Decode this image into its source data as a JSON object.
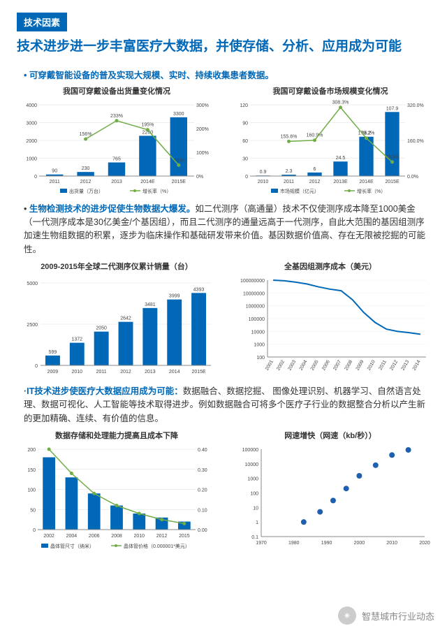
{
  "header": {
    "tag": "技术因素",
    "title": "技术进步进一步丰富医疗大数据，并使存储、分析、应用成为可能"
  },
  "section1": {
    "bullet": "可穿戴智能设备的普及实现大规模、实时、持续收集患者数据。",
    "chart_a": {
      "title": "我国可穿戴设备出货量变化情况",
      "type": "bar+line",
      "categories": [
        "2011",
        "2012",
        "2013",
        "2014E",
        "2015E"
      ],
      "bars": [
        90,
        230,
        765,
        2260,
        3300
      ],
      "bar_color": "#0068b7",
      "line": [
        null,
        156,
        233,
        195,
        46
      ],
      "line_labels": [
        "",
        "156%",
        "233%",
        "195%",
        "46%"
      ],
      "value_labels": [
        "90",
        "230",
        "765",
        "2260",
        "3300"
      ],
      "line_color": "#70ad47",
      "y_left_ticks": [
        0,
        1000,
        2000,
        3000,
        4000
      ],
      "y_right_ticks": [
        "0%",
        "100%",
        "200%",
        "300%"
      ],
      "legend": [
        "出货量（万台）",
        "增长率（%）"
      ],
      "axis_color": "#888",
      "text_color": "#444",
      "tick_fontsize": 7
    },
    "chart_b": {
      "title": "我国可穿戴设备市场规模变化情况",
      "type": "bar+line",
      "categories": [
        "2010",
        "2011",
        "2012",
        "2013E",
        "2014E",
        "2015E"
      ],
      "bars": [
        0.9,
        2.3,
        6,
        24.5,
        66.2,
        107.9
      ],
      "bar_color": "#0068b7",
      "value_labels": [
        "0.9",
        "2.3",
        "6",
        "24.5",
        "66.2",
        "107.9"
      ],
      "line": [
        null,
        155.6,
        160.9,
        308.3,
        170.2,
        63.0
      ],
      "line_labels": [
        "",
        "155.6%",
        "160.9%",
        "308.3%",
        "170.2%",
        "63.0%"
      ],
      "line_color": "#70ad47",
      "y_left_ticks": [
        0,
        30,
        60,
        90,
        120
      ],
      "y_right_ticks": [
        "0.0%",
        "160.0%",
        "320.0%"
      ],
      "legend": [
        "市场规模（亿元）",
        "增长率（%）"
      ],
      "axis_color": "#888",
      "text_color": "#444",
      "tick_fontsize": 7
    }
  },
  "section2": {
    "lead": "生物检测技术的进步促使生物数据大爆发。",
    "body": "如二代测序（高通量）技术不仅使测序成本降至1000美金（一代测序成本是30亿美金/个基因组），而且二代测序的通量远高于一代测序，自此大范围的基因组测序加速生物组数据的积累，逐步为临床操作和基础研发带来价值。基因数据价值高、存在无限被挖掘的可能性。",
    "chart_a": {
      "title": "2009-2015年全球二代测序仪累计销量（台）",
      "type": "bar",
      "categories": [
        "2009",
        "2010",
        "2011",
        "2012",
        "2013",
        "2014",
        "2015E"
      ],
      "values": [
        599,
        1372,
        2050,
        2642,
        3481,
        3999,
        4393
      ],
      "bar_color": "#0068b7",
      "y_ticks": [
        0,
        2500,
        5000
      ],
      "axis_color": "#888",
      "text_color": "#444",
      "tick_fontsize": 7
    },
    "chart_b": {
      "title": "全基因组测序成本（美元）",
      "type": "line-log",
      "categories": [
        "2001",
        "2002",
        "2003",
        "2004",
        "2005",
        "2006",
        "2007",
        "2008",
        "2009",
        "2010",
        "2011",
        "2012",
        "2013",
        "2014"
      ],
      "values": [
        100000000,
        90000000,
        70000000,
        50000000,
        30000000,
        20000000,
        15000000,
        3000000,
        300000,
        50000,
        15000,
        10000,
        8000,
        6000
      ],
      "line_color": "#0068b7",
      "y_ticks": [
        "100",
        "1000",
        "10000",
        "100000",
        "1000000",
        "10000000",
        "100000000"
      ],
      "y_ticks_num": [
        100,
        1000,
        10000,
        100000,
        1000000,
        10000000,
        100000000
      ],
      "axis_color": "#888",
      "text_color": "#444",
      "tick_fontsize": 7
    }
  },
  "section3": {
    "lead": "IT技术进步使医疗大数据应用成为可能：",
    "body": "数据融合、数据挖掘、 图像处理识别、机器学习、自然语言处理、数据可视化、人工智能等技术取得进步。例如数据融合可将多个医疗子行业的数据整合分析以产生新的更加精确、连续、有价值的信息。",
    "chart_a": {
      "title": "数据存储和处理能力提高且成本下降",
      "type": "bar+line-decline",
      "categories": [
        "2002",
        "2004",
        "2006",
        "2008",
        "2010",
        "2012",
        "2015"
      ],
      "bars": [
        180,
        130,
        90,
        60,
        40,
        30,
        20
      ],
      "line": [
        0.4,
        0.28,
        0.18,
        0.12,
        0.08,
        0.05,
        0.03
      ],
      "bar_color": "#0068b7",
      "line_color": "#70ad47",
      "y_left_ticks": [
        0,
        50,
        100,
        150,
        200
      ],
      "y_right_ticks": [
        "0.00",
        "0.10",
        "0.20",
        "0.30",
        "0.40"
      ],
      "legend": [
        "晶体管尺寸（纳米）",
        "晶体管价格（0.000001*美元）"
      ],
      "axis_color": "#888",
      "text_color": "#444",
      "tick_fontsize": 7
    },
    "chart_b": {
      "title": "网速增快（网速（kb/秒））",
      "type": "scatter-log",
      "x_ticks": [
        "1970",
        "1980",
        "1990",
        "2000",
        "2010",
        "2020"
      ],
      "y_ticks": [
        "0.1",
        "1",
        "10",
        "100",
        "1000",
        "10000",
        "100000"
      ],
      "y_ticks_num": [
        0.1,
        1,
        10,
        100,
        1000,
        10000,
        100000
      ],
      "points": [
        [
          1983,
          1
        ],
        [
          1988,
          5
        ],
        [
          1992,
          30
        ],
        [
          1996,
          200
        ],
        [
          2000,
          1500
        ],
        [
          2005,
          8000
        ],
        [
          2010,
          40000
        ],
        [
          2015,
          90000
        ]
      ],
      "point_color": "#1f5fb0",
      "axis_color": "#888",
      "text_color": "#444",
      "tick_fontsize": 7
    }
  },
  "footer": {
    "icon": "✴",
    "text": "智慧城市行业动态"
  },
  "palette": {
    "blue": "#0068b7",
    "green": "#70ad47",
    "gray": "#888888",
    "text": "#333333",
    "white": "#ffffff"
  }
}
